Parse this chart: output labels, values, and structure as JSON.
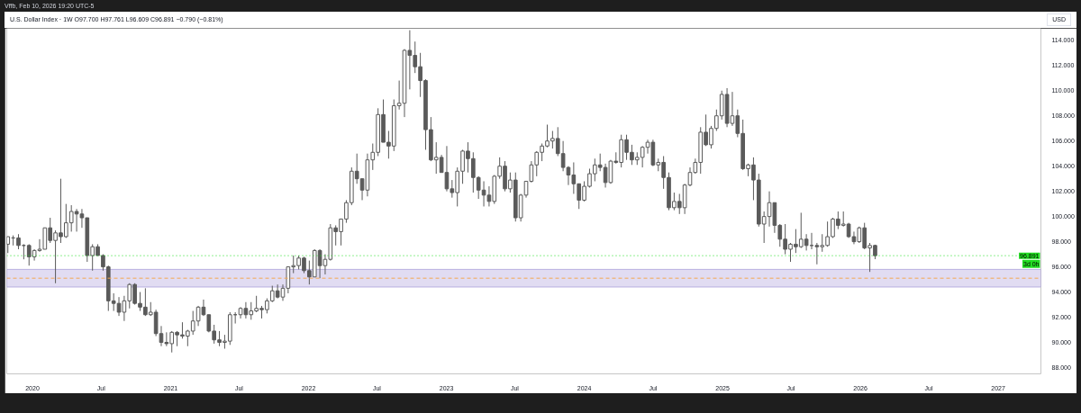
{
  "chart_data": {
    "type": "candlestick",
    "title": "U.S. Dollar Index · 1W O97.700 H97.761 L96.609 C96.891 −0.790 (−0.81%)",
    "subtitle": "Vffb, Feb 10, 2026 19:20 UTC-5",
    "ylabel": "USD",
    "color": "#5a5a5a",
    "x": [
      "2019-10-28",
      "2019-11-11",
      "2019-11-25",
      "2019-12-09",
      "2019-12-23",
      "2020-01-06",
      "2020-01-20",
      "2020-02-03",
      "2020-02-17",
      "2020-03-02",
      "2020-03-16",
      "2020-03-30",
      "2020-04-13",
      "2020-04-27",
      "2020-05-11",
      "2020-05-25",
      "2020-06-08",
      "2020-06-22",
      "2020-07-06",
      "2020-07-20",
      "2020-08-03",
      "2020-08-17",
      "2020-08-31",
      "2020-09-14",
      "2020-09-28",
      "2020-10-12",
      "2020-10-26",
      "2020-11-09",
      "2020-11-23",
      "2020-12-07",
      "2020-12-21",
      "2021-01-04",
      "2021-01-18",
      "2021-02-01",
      "2021-02-15",
      "2021-03-01",
      "2021-03-15",
      "2021-03-29",
      "2021-04-12",
      "2021-04-26",
      "2021-05-10",
      "2021-05-24",
      "2021-06-07",
      "2021-06-21",
      "2021-07-05",
      "2021-07-19",
      "2021-08-02",
      "2021-08-16",
      "2021-08-30",
      "2021-09-13",
      "2021-09-27",
      "2021-10-11",
      "2021-10-25",
      "2021-11-08",
      "2021-11-22",
      "2021-12-06",
      "2021-12-20",
      "2022-01-03",
      "2022-01-17",
      "2022-01-31",
      "2022-02-14",
      "2022-02-28",
      "2022-03-14",
      "2022-03-28",
      "2022-04-11",
      "2022-04-25",
      "2022-05-09",
      "2022-05-23",
      "2022-06-06",
      "2022-06-20",
      "2022-07-04",
      "2022-07-18",
      "2022-08-01",
      "2022-08-15",
      "2022-08-29",
      "2022-09-12",
      "2022-09-26",
      "2022-10-10",
      "2022-10-24",
      "2022-11-07",
      "2022-11-21",
      "2022-12-05",
      "2022-12-19",
      "2023-01-02",
      "2023-01-16",
      "2023-01-30",
      "2023-02-13",
      "2023-02-27",
      "2023-03-13",
      "2023-03-27",
      "2023-04-10",
      "2023-04-24",
      "2023-05-08",
      "2023-05-22",
      "2023-06-05",
      "2023-06-19",
      "2023-07-03",
      "2023-07-17",
      "2023-07-31",
      "2023-08-14",
      "2023-08-28",
      "2023-09-11",
      "2023-09-25",
      "2023-10-09",
      "2023-10-23",
      "2023-11-06",
      "2023-11-20",
      "2023-12-04",
      "2023-12-18",
      "2024-01-01",
      "2024-01-15",
      "2024-01-29",
      "2024-02-12",
      "2024-02-26",
      "2024-03-11",
      "2024-03-25",
      "2024-04-08",
      "2024-04-22",
      "2024-05-06",
      "2024-05-20",
      "2024-06-03",
      "2024-06-17",
      "2024-07-01",
      "2024-07-15",
      "2024-07-29",
      "2024-08-12",
      "2024-08-26",
      "2024-09-09",
      "2024-09-23",
      "2024-10-07",
      "2024-10-21",
      "2024-11-04",
      "2024-11-18",
      "2024-12-02",
      "2024-12-16",
      "2024-12-30",
      "2025-01-13",
      "2025-01-27",
      "2025-02-10",
      "2025-02-24",
      "2025-03-10",
      "2025-03-24",
      "2025-04-07",
      "2025-04-21",
      "2025-05-05",
      "2025-05-19",
      "2025-06-02",
      "2025-06-16",
      "2025-06-30",
      "2025-07-14",
      "2025-07-28",
      "2025-08-11",
      "2025-08-25",
      "2025-09-08",
      "2025-09-22",
      "2025-10-06",
      "2025-10-20",
      "2025-11-03",
      "2025-11-17",
      "2025-12-01",
      "2025-12-15",
      "2025-12-29",
      "2026-01-12",
      "2026-01-26",
      "2026-02-09"
    ],
    "ohlc": [
      [
        97.8,
        98.4,
        97.1,
        98.4
      ],
      [
        98.3,
        98.5,
        97.7,
        98.3
      ],
      [
        98.3,
        98.6,
        97.4,
        97.7
      ],
      [
        97.7,
        97.8,
        96.6,
        97.7
      ],
      [
        97.7,
        97.8,
        96.1,
        96.8
      ],
      [
        96.8,
        97.4,
        96.5,
        97.3
      ],
      [
        97.3,
        98.2,
        97.2,
        97.4
      ],
      [
        97.4,
        99.1,
        97.4,
        99.1
      ],
      [
        99.1,
        99.9,
        97.9,
        98.1
      ],
      [
        98.1,
        98.9,
        94.7,
        98.7
      ],
      [
        98.7,
        103.0,
        97.9,
        98.4
      ],
      [
        98.4,
        101.0,
        98.3,
        99.5
      ],
      [
        99.5,
        100.9,
        98.8,
        100.4
      ],
      [
        100.4,
        100.6,
        98.8,
        100.2
      ],
      [
        100.2,
        100.6,
        99.1,
        99.9
      ],
      [
        99.9,
        99.9,
        96.4,
        96.9
      ],
      [
        96.9,
        97.8,
        95.7,
        97.6
      ],
      [
        97.6,
        97.8,
        96.9,
        96.9
      ],
      [
        96.9,
        97.0,
        95.7,
        96.0
      ],
      [
        96.0,
        96.1,
        92.5,
        93.3
      ],
      [
        93.3,
        93.9,
        92.5,
        93.1
      ],
      [
        93.1,
        93.6,
        92.1,
        92.4
      ],
      [
        92.4,
        93.7,
        91.7,
        93.3
      ],
      [
        93.3,
        94.7,
        92.7,
        94.6
      ],
      [
        94.6,
        94.7,
        93.0,
        93.1
      ],
      [
        93.1,
        94.0,
        92.5,
        92.8
      ],
      [
        92.8,
        94.3,
        92.1,
        92.2
      ],
      [
        92.2,
        93.2,
        92.1,
        92.4
      ],
      [
        92.4,
        92.6,
        90.5,
        90.7
      ],
      [
        90.7,
        91.3,
        89.7,
        90.0
      ],
      [
        90.0,
        90.8,
        89.7,
        89.9
      ],
      [
        89.9,
        90.9,
        89.2,
        90.8
      ],
      [
        90.8,
        90.9,
        89.7,
        90.6
      ],
      [
        90.6,
        91.6,
        90.3,
        90.5
      ],
      [
        90.5,
        91.0,
        89.7,
        90.9
      ],
      [
        90.9,
        92.5,
        90.6,
        91.7
      ],
      [
        91.7,
        92.9,
        91.3,
        92.8
      ],
      [
        92.8,
        93.4,
        92.1,
        92.2
      ],
      [
        92.2,
        92.2,
        90.8,
        90.9
      ],
      [
        90.9,
        91.4,
        89.9,
        90.2
      ],
      [
        90.2,
        90.9,
        89.7,
        90.0
      ],
      [
        90.0,
        90.6,
        89.5,
        90.1
      ],
      [
        90.1,
        92.4,
        89.8,
        92.2
      ],
      [
        92.2,
        92.4,
        91.5,
        92.2
      ],
      [
        92.2,
        92.8,
        91.9,
        92.7
      ],
      [
        92.7,
        93.2,
        91.9,
        92.2
      ],
      [
        92.2,
        93.2,
        91.8,
        92.5
      ],
      [
        92.5,
        93.7,
        92.4,
        92.7
      ],
      [
        92.7,
        92.9,
        91.9,
        92.6
      ],
      [
        92.6,
        93.5,
        92.3,
        93.3
      ],
      [
        93.3,
        94.5,
        93.2,
        94.1
      ],
      [
        94.1,
        94.6,
        93.5,
        93.6
      ],
      [
        93.6,
        94.6,
        93.3,
        94.3
      ],
      [
        94.3,
        96.0,
        93.9,
        96.0
      ],
      [
        96.0,
        96.9,
        95.5,
        96.1
      ],
      [
        96.1,
        96.9,
        95.8,
        96.7
      ],
      [
        96.7,
        96.8,
        95.5,
        95.7
      ],
      [
        95.7,
        96.5,
        94.6,
        95.2
      ],
      [
        95.2,
        97.4,
        95.2,
        97.3
      ],
      [
        97.3,
        97.4,
        95.1,
        96.1
      ],
      [
        96.1,
        97.0,
        95.4,
        96.6
      ],
      [
        96.6,
        99.4,
        96.5,
        99.1
      ],
      [
        99.1,
        99.3,
        97.7,
        98.8
      ],
      [
        98.8,
        99.8,
        97.7,
        99.8
      ],
      [
        99.8,
        101.3,
        99.5,
        101.1
      ],
      [
        101.1,
        103.9,
        100.9,
        103.6
      ],
      [
        103.6,
        105.0,
        102.6,
        103.0
      ],
      [
        103.0,
        103.0,
        101.3,
        102.1
      ],
      [
        102.1,
        105.0,
        101.6,
        104.5
      ],
      [
        104.5,
        105.8,
        103.7,
        105.1
      ],
      [
        105.1,
        108.6,
        104.8,
        108.1
      ],
      [
        108.1,
        109.3,
        105.9,
        105.9
      ],
      [
        105.9,
        106.8,
        104.6,
        105.6
      ],
      [
        105.6,
        109.3,
        105.2,
        108.8
      ],
      [
        108.8,
        110.8,
        108.5,
        109.0
      ],
      [
        109.0,
        113.3,
        107.9,
        113.2
      ],
      [
        113.2,
        114.8,
        110.1,
        112.8
      ],
      [
        112.8,
        113.9,
        111.4,
        111.9
      ],
      [
        111.9,
        113.0,
        109.5,
        110.8
      ],
      [
        110.8,
        110.9,
        105.3,
        106.9
      ],
      [
        106.9,
        107.9,
        104.4,
        104.5
      ],
      [
        104.5,
        105.9,
        103.4,
        104.7
      ],
      [
        104.7,
        104.9,
        103.5,
        103.5
      ],
      [
        103.5,
        105.6,
        102.0,
        102.2
      ],
      [
        102.2,
        102.9,
        101.5,
        101.9
      ],
      [
        101.9,
        103.9,
        100.8,
        103.6
      ],
      [
        103.6,
        105.3,
        102.6,
        105.2
      ],
      [
        105.2,
        105.9,
        103.5,
        104.6
      ],
      [
        104.6,
        105.1,
        101.9,
        103.1
      ],
      [
        103.1,
        103.2,
        101.4,
        102.1
      ],
      [
        102.1,
        102.8,
        100.8,
        101.7
      ],
      [
        101.7,
        102.4,
        100.8,
        101.2
      ],
      [
        101.2,
        103.3,
        101.0,
        103.2
      ],
      [
        103.2,
        104.7,
        103.0,
        104.0
      ],
      [
        104.0,
        104.4,
        102.0,
        102.2
      ],
      [
        102.2,
        103.5,
        101.9,
        102.9
      ],
      [
        102.9,
        103.5,
        99.6,
        99.9
      ],
      [
        99.9,
        101.8,
        99.6,
        101.7
      ],
      [
        101.7,
        102.8,
        101.5,
        102.8
      ],
      [
        102.8,
        104.4,
        102.7,
        104.1
      ],
      [
        104.1,
        105.2,
        103.2,
        105.1
      ],
      [
        105.1,
        105.8,
        104.4,
        105.6
      ],
      [
        105.6,
        107.3,
        105.5,
        106.0
      ],
      [
        106.0,
        106.8,
        105.4,
        106.2
      ],
      [
        106.2,
        107.1,
        104.8,
        105.0
      ],
      [
        105.0,
        106.0,
        103.6,
        103.9
      ],
      [
        103.9,
        104.0,
        102.5,
        103.3
      ],
      [
        103.3,
        104.3,
        101.8,
        102.6
      ],
      [
        102.6,
        102.6,
        100.6,
        101.3
      ],
      [
        101.3,
        102.8,
        101.2,
        102.4
      ],
      [
        102.4,
        103.8,
        102.3,
        103.4
      ],
      [
        103.4,
        104.6,
        102.8,
        104.1
      ],
      [
        104.1,
        105.0,
        103.6,
        103.9
      ],
      [
        103.9,
        104.2,
        102.3,
        102.7
      ],
      [
        102.7,
        104.5,
        102.6,
        104.4
      ],
      [
        104.4,
        105.1,
        104.2,
        104.3
      ],
      [
        104.3,
        106.5,
        103.9,
        106.1
      ],
      [
        106.1,
        106.5,
        104.5,
        105.1
      ],
      [
        105.1,
        105.7,
        104.1,
        104.5
      ],
      [
        104.5,
        105.1,
        104.1,
        104.7
      ],
      [
        104.7,
        105.6,
        103.9,
        105.5
      ],
      [
        105.5,
        106.1,
        105.0,
        105.9
      ],
      [
        105.9,
        106.1,
        104.0,
        104.1
      ],
      [
        104.1,
        104.6,
        103.6,
        104.3
      ],
      [
        104.3,
        104.8,
        102.2,
        103.1
      ],
      [
        103.1,
        103.5,
        100.5,
        100.7
      ],
      [
        100.7,
        101.9,
        100.5,
        101.2
      ],
      [
        101.2,
        101.8,
        100.2,
        100.7
      ],
      [
        100.7,
        102.6,
        100.2,
        102.5
      ],
      [
        102.5,
        103.9,
        102.4,
        103.5
      ],
      [
        103.5,
        104.6,
        103.4,
        104.3
      ],
      [
        104.3,
        107.1,
        103.4,
        106.7
      ],
      [
        106.7,
        108.1,
        105.6,
        105.7
      ],
      [
        105.7,
        107.2,
        105.4,
        107.0
      ],
      [
        107.0,
        108.5,
        106.8,
        108.0
      ],
      [
        108.0,
        110.0,
        107.7,
        109.7
      ],
      [
        109.7,
        110.2,
        107.1,
        107.4
      ],
      [
        107.4,
        109.9,
        107.2,
        108.0
      ],
      [
        108.0,
        108.5,
        106.3,
        106.6
      ],
      [
        106.6,
        107.7,
        103.7,
        103.8
      ],
      [
        103.8,
        104.2,
        103.2,
        104.1
      ],
      [
        104.1,
        104.7,
        101.3,
        102.9
      ],
      [
        102.9,
        103.4,
        99.2,
        99.4
      ],
      [
        99.4,
        100.4,
        97.9,
        100.0
      ],
      [
        100.0,
        102.0,
        99.2,
        101.1
      ],
      [
        101.1,
        101.1,
        98.7,
        99.3
      ],
      [
        99.3,
        99.4,
        97.6,
        98.2
      ],
      [
        98.2,
        99.4,
        97.0,
        97.4
      ],
      [
        97.4,
        97.9,
        96.4,
        97.8
      ],
      [
        97.8,
        99.0,
        97.1,
        97.6
      ],
      [
        97.6,
        100.3,
        97.5,
        98.2
      ],
      [
        98.2,
        98.6,
        97.3,
        97.7
      ],
      [
        97.7,
        98.7,
        97.4,
        97.7
      ],
      [
        97.7,
        97.9,
        96.2,
        97.6
      ],
      [
        97.6,
        98.6,
        97.2,
        97.7
      ],
      [
        97.7,
        99.6,
        97.6,
        98.4
      ],
      [
        98.4,
        99.9,
        98.3,
        99.8
      ],
      [
        99.8,
        100.4,
        99.0,
        99.3
      ],
      [
        99.3,
        100.4,
        99.2,
        99.4
      ],
      [
        99.4,
        99.5,
        98.3,
        98.4
      ],
      [
        98.4,
        98.8,
        97.8,
        98.0
      ],
      [
        98.0,
        99.2,
        97.9,
        99.1
      ],
      [
        99.1,
        99.5,
        97.4,
        97.5
      ],
      [
        97.5,
        97.9,
        95.6,
        97.7
      ],
      [
        97.7,
        97.761,
        96.609,
        96.891
      ]
    ],
    "xlim": [
      "2019-10-25",
      "2027-04-24"
    ],
    "ylim": [
      87.5,
      114.95
    ],
    "xticks": [
      {
        "value": "2020",
        "label": "2020"
      },
      {
        "value": "2020-07",
        "label": "Jul"
      },
      {
        "value": "2021",
        "label": "2021"
      },
      {
        "value": "2021-07",
        "label": "Jul"
      },
      {
        "value": "2022",
        "label": "2022"
      },
      {
        "value": "2022-07",
        "label": "Jul"
      },
      {
        "value": "2023",
        "label": "2023"
      },
      {
        "value": "2023-07",
        "label": "Jul"
      },
      {
        "value": "2024",
        "label": "2024"
      },
      {
        "value": "2024-07",
        "label": "Jul"
      },
      {
        "value": "2025",
        "label": "2025"
      },
      {
        "value": "2025-07",
        "label": "Jul"
      },
      {
        "value": "2026",
        "label": "2026"
      },
      {
        "value": "2026-07",
        "label": "Jul"
      },
      {
        "value": "2027",
        "label": "2027"
      }
    ],
    "yticks": [
      {
        "value": 88,
        "label": "88.000"
      },
      {
        "value": 90,
        "label": "90.000"
      },
      {
        "value": 92,
        "label": "92.000"
      },
      {
        "value": 94,
        "label": "94.000"
      },
      {
        "value": 96,
        "label": "96.000"
      },
      {
        "value": 98,
        "label": "98.000"
      },
      {
        "value": 100,
        "label": "100.000"
      },
      {
        "value": 102,
        "label": "102.000"
      },
      {
        "value": 104,
        "label": "104.000"
      },
      {
        "value": 106,
        "label": "106.000"
      },
      {
        "value": 108,
        "label": "108.000"
      },
      {
        "value": 110,
        "label": "110.000"
      },
      {
        "value": 112,
        "label": "112.000"
      },
      {
        "value": 114,
        "label": "114.000"
      }
    ],
    "ref_lines": [
      {
        "axis": "y",
        "value": 96.891,
        "label": "96.891\n3d 0h",
        "color": "#22dd22",
        "line_style": "dotted"
      },
      {
        "axis": "y",
        "value": 95.1,
        "color": "#f5a650",
        "line_style": "dashed"
      }
    ],
    "bands": [
      {
        "axis": "y",
        "from": 94.4,
        "to": 95.8,
        "color": "#b3a8de"
      }
    ]
  }
}
